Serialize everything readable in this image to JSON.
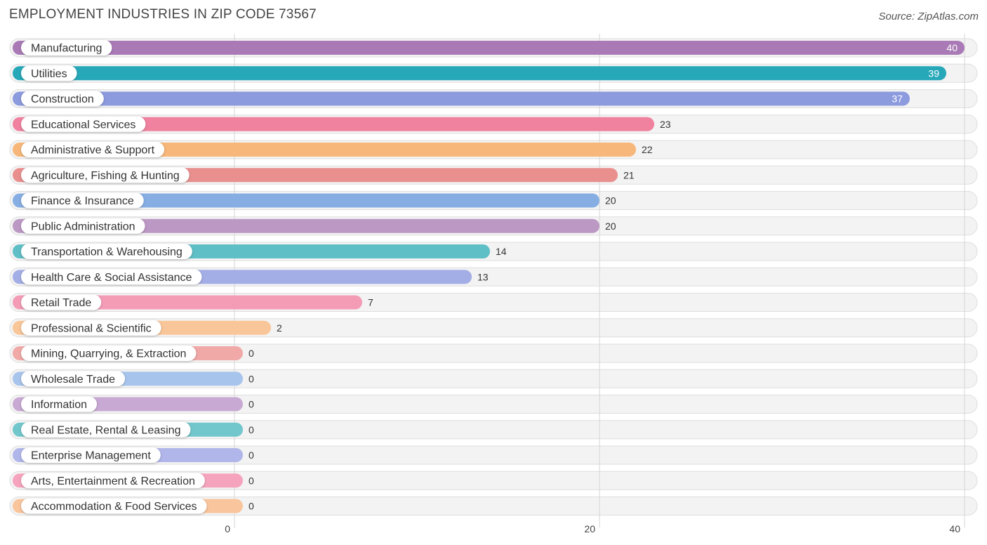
{
  "header": {
    "title": "EMPLOYMENT INDUSTRIES IN ZIP CODE 73567",
    "source": "Source: ZipAtlas.com"
  },
  "chart_data": {
    "type": "bar",
    "orientation": "horizontal",
    "title": "EMPLOYMENT INDUSTRIES IN ZIP CODE 73567",
    "xlim": [
      0,
      40
    ],
    "x_ticks": [
      0,
      20,
      40
    ],
    "grid": true,
    "categories": [
      "Manufacturing",
      "Utilities",
      "Construction",
      "Educational Services",
      "Administrative & Support",
      "Agriculture, Fishing & Hunting",
      "Finance & Insurance",
      "Public Administration",
      "Transportation & Warehousing",
      "Health Care & Social Assistance",
      "Retail Trade",
      "Professional & Scientific",
      "Mining, Quarrying, & Extraction",
      "Wholesale Trade",
      "Information",
      "Real Estate, Rental & Leasing",
      "Enterprise Management",
      "Arts, Entertainment & Recreation",
      "Accommodation & Food Services"
    ],
    "values": [
      40,
      39,
      37,
      23,
      22,
      21,
      20,
      20,
      14,
      13,
      7,
      2,
      0,
      0,
      0,
      0,
      0,
      0,
      0
    ],
    "colors": [
      "#a97ab6",
      "#27a8b9",
      "#8c9ade",
      "#f0829f",
      "#f8b77a",
      "#e9908f",
      "#86aee3",
      "#bc98c4",
      "#5fbfc6",
      "#a4aee6",
      "#f49cb6",
      "#f9c699",
      "#f0a9a7",
      "#a7c4ec",
      "#c8a9d3",
      "#72c7cc",
      "#b0b6ea",
      "#f6a4bd",
      "#f9c59c"
    ]
  }
}
